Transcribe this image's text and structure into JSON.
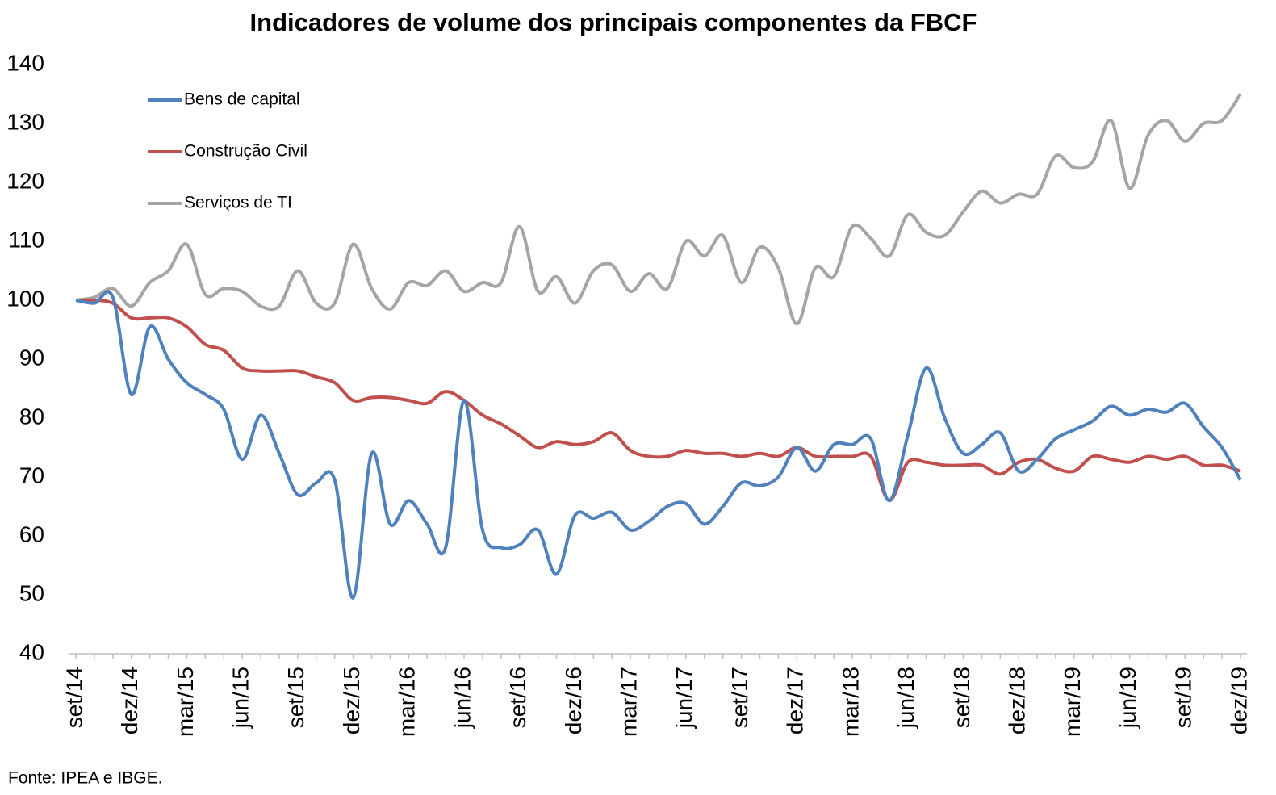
{
  "chart_data": {
    "type": "line",
    "title": "Indicadores de volume dos principais componentes da FBCF",
    "source": "Fonte: IPEA e IBGE.",
    "categories": [
      "set/14",
      null,
      null,
      "dez/14",
      null,
      null,
      "mar/15",
      null,
      null,
      "jun/15",
      null,
      null,
      "set/15",
      null,
      null,
      "dez/15",
      null,
      null,
      "mar/16",
      null,
      null,
      "jun/16",
      null,
      null,
      "set/16",
      null,
      null,
      "dez/16",
      null,
      null,
      "mar/17",
      null,
      null,
      "jun/17",
      null,
      null,
      "set/17",
      null,
      null,
      "dez/17",
      null,
      null,
      "mar/18",
      null,
      null,
      "jun/18",
      null,
      null,
      "set/18",
      null,
      null,
      "dez/18",
      null,
      null,
      "mar/19",
      null,
      null,
      "jun/19",
      null,
      null,
      "set/19",
      null,
      null,
      "dez/19"
    ],
    "ylim": [
      40,
      140
    ],
    "yticks": [
      40,
      50,
      60,
      70,
      80,
      90,
      100,
      110,
      120,
      130,
      140
    ],
    "legend": "upper left",
    "series": [
      {
        "name": "Bens de capital",
        "color": "#4f81bd",
        "values": [
          100,
          99.5,
          100.5,
          84,
          95.5,
          90,
          86,
          84,
          81.5,
          73,
          80.5,
          74,
          67,
          69,
          69.5,
          49.5,
          74,
          62,
          66,
          62,
          58,
          83,
          61,
          58,
          58.5,
          61,
          53.5,
          63.5,
          63,
          64,
          61,
          62.5,
          65,
          65.5,
          62,
          65,
          69,
          68.5,
          70,
          75,
          71,
          75.5,
          75.5,
          76.5,
          66,
          77,
          88.5,
          80,
          74,
          75.5,
          77.5,
          71,
          73,
          76.5,
          78,
          79.5,
          82,
          80.5,
          81.5,
          81,
          82.5,
          78.5,
          75,
          69.5
        ]
      },
      {
        "name": "Construção Civil",
        "color": "#c0504d",
        "values": [
          100,
          100,
          99.5,
          97,
          97,
          97,
          95.5,
          92.5,
          91.5,
          88.5,
          88,
          88,
          88,
          87,
          86,
          83,
          83.5,
          83.5,
          83,
          82.5,
          84.5,
          83,
          80.5,
          79,
          77,
          75,
          76,
          75.5,
          76,
          77.5,
          74.5,
          73.5,
          73.5,
          74.5,
          74,
          74,
          73.5,
          74,
          73.5,
          75,
          73.5,
          73.5,
          73.5,
          73.5,
          66,
          72.5,
          72.5,
          72,
          72,
          72,
          70.5,
          72.5,
          73,
          71.5,
          71,
          73.5,
          73,
          72.5,
          73.5,
          73,
          73.5,
          72,
          72,
          71
        ]
      },
      {
        "name": "Serviços de TI",
        "color": "#a5a5a5",
        "values": [
          100,
          100.5,
          102,
          99,
          103,
          105,
          109.5,
          101,
          102,
          101.5,
          99,
          99,
          105,
          99.5,
          99.5,
          109.5,
          102,
          98.5,
          103,
          102.5,
          105,
          101.5,
          103,
          103,
          112.5,
          101.5,
          104,
          99.5,
          105,
          106,
          101.5,
          104.5,
          102,
          110,
          107.5,
          111,
          103,
          109,
          105.5,
          96,
          105.5,
          104,
          112.5,
          110.5,
          107.5,
          114.5,
          111.5,
          111,
          115,
          118.5,
          116.5,
          118,
          118,
          124.5,
          122.5,
          123.5,
          130.5,
          119,
          128,
          130.5,
          127,
          130,
          130.5,
          135
        ]
      }
    ]
  }
}
